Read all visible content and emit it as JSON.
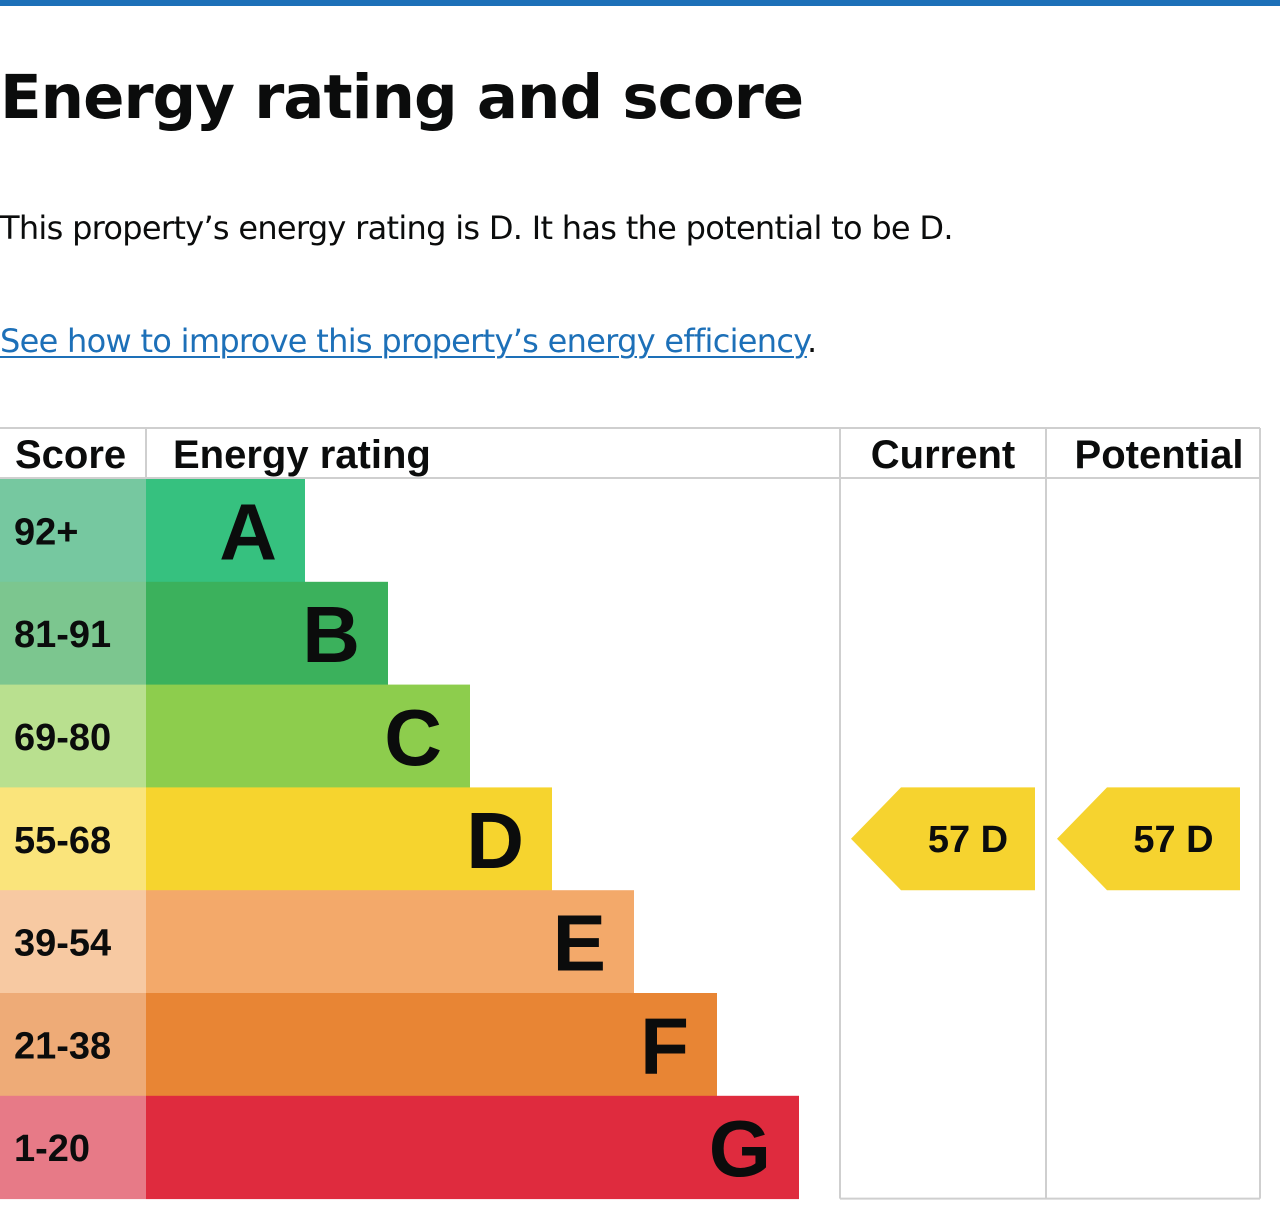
{
  "heading": "Energy rating and score",
  "summary": "This property’s energy rating is D. It has the potential to be D.",
  "improve_link": {
    "text": "See how to improve this property’s energy efficiency",
    "suffix": "."
  },
  "colors": {
    "accent_blue": "#1d70b8",
    "grid": "#cfcfcf",
    "indicator": "#f6d32f"
  },
  "chart_data": {
    "type": "table",
    "columns": [
      "Score",
      "Energy rating",
      "Current",
      "Potential"
    ],
    "bands": [
      {
        "letter": "A",
        "range": "92+",
        "color": "#36c17f",
        "score_color": "#76c8a0"
      },
      {
        "letter": "B",
        "range": "81-91",
        "color": "#3bb15c",
        "score_color": "#7cc68f"
      },
      {
        "letter": "C",
        "range": "69-80",
        "color": "#8dcd4d",
        "score_color": "#b9e08f"
      },
      {
        "letter": "D",
        "range": "55-68",
        "color": "#f6d42e",
        "score_color": "#fae47b"
      },
      {
        "letter": "E",
        "range": "39-54",
        "color": "#f3a96a",
        "score_color": "#f7c9a2"
      },
      {
        "letter": "F",
        "range": "21-38",
        "color": "#e88534",
        "score_color": "#eeab77"
      },
      {
        "letter": "G",
        "range": "1-20",
        "color": "#df2b3e",
        "score_color": "#e77a87"
      }
    ],
    "current": {
      "score": 57,
      "letter": "D",
      "label": "57  D"
    },
    "potential": {
      "score": 57,
      "letter": "D",
      "label": "57  D"
    }
  }
}
